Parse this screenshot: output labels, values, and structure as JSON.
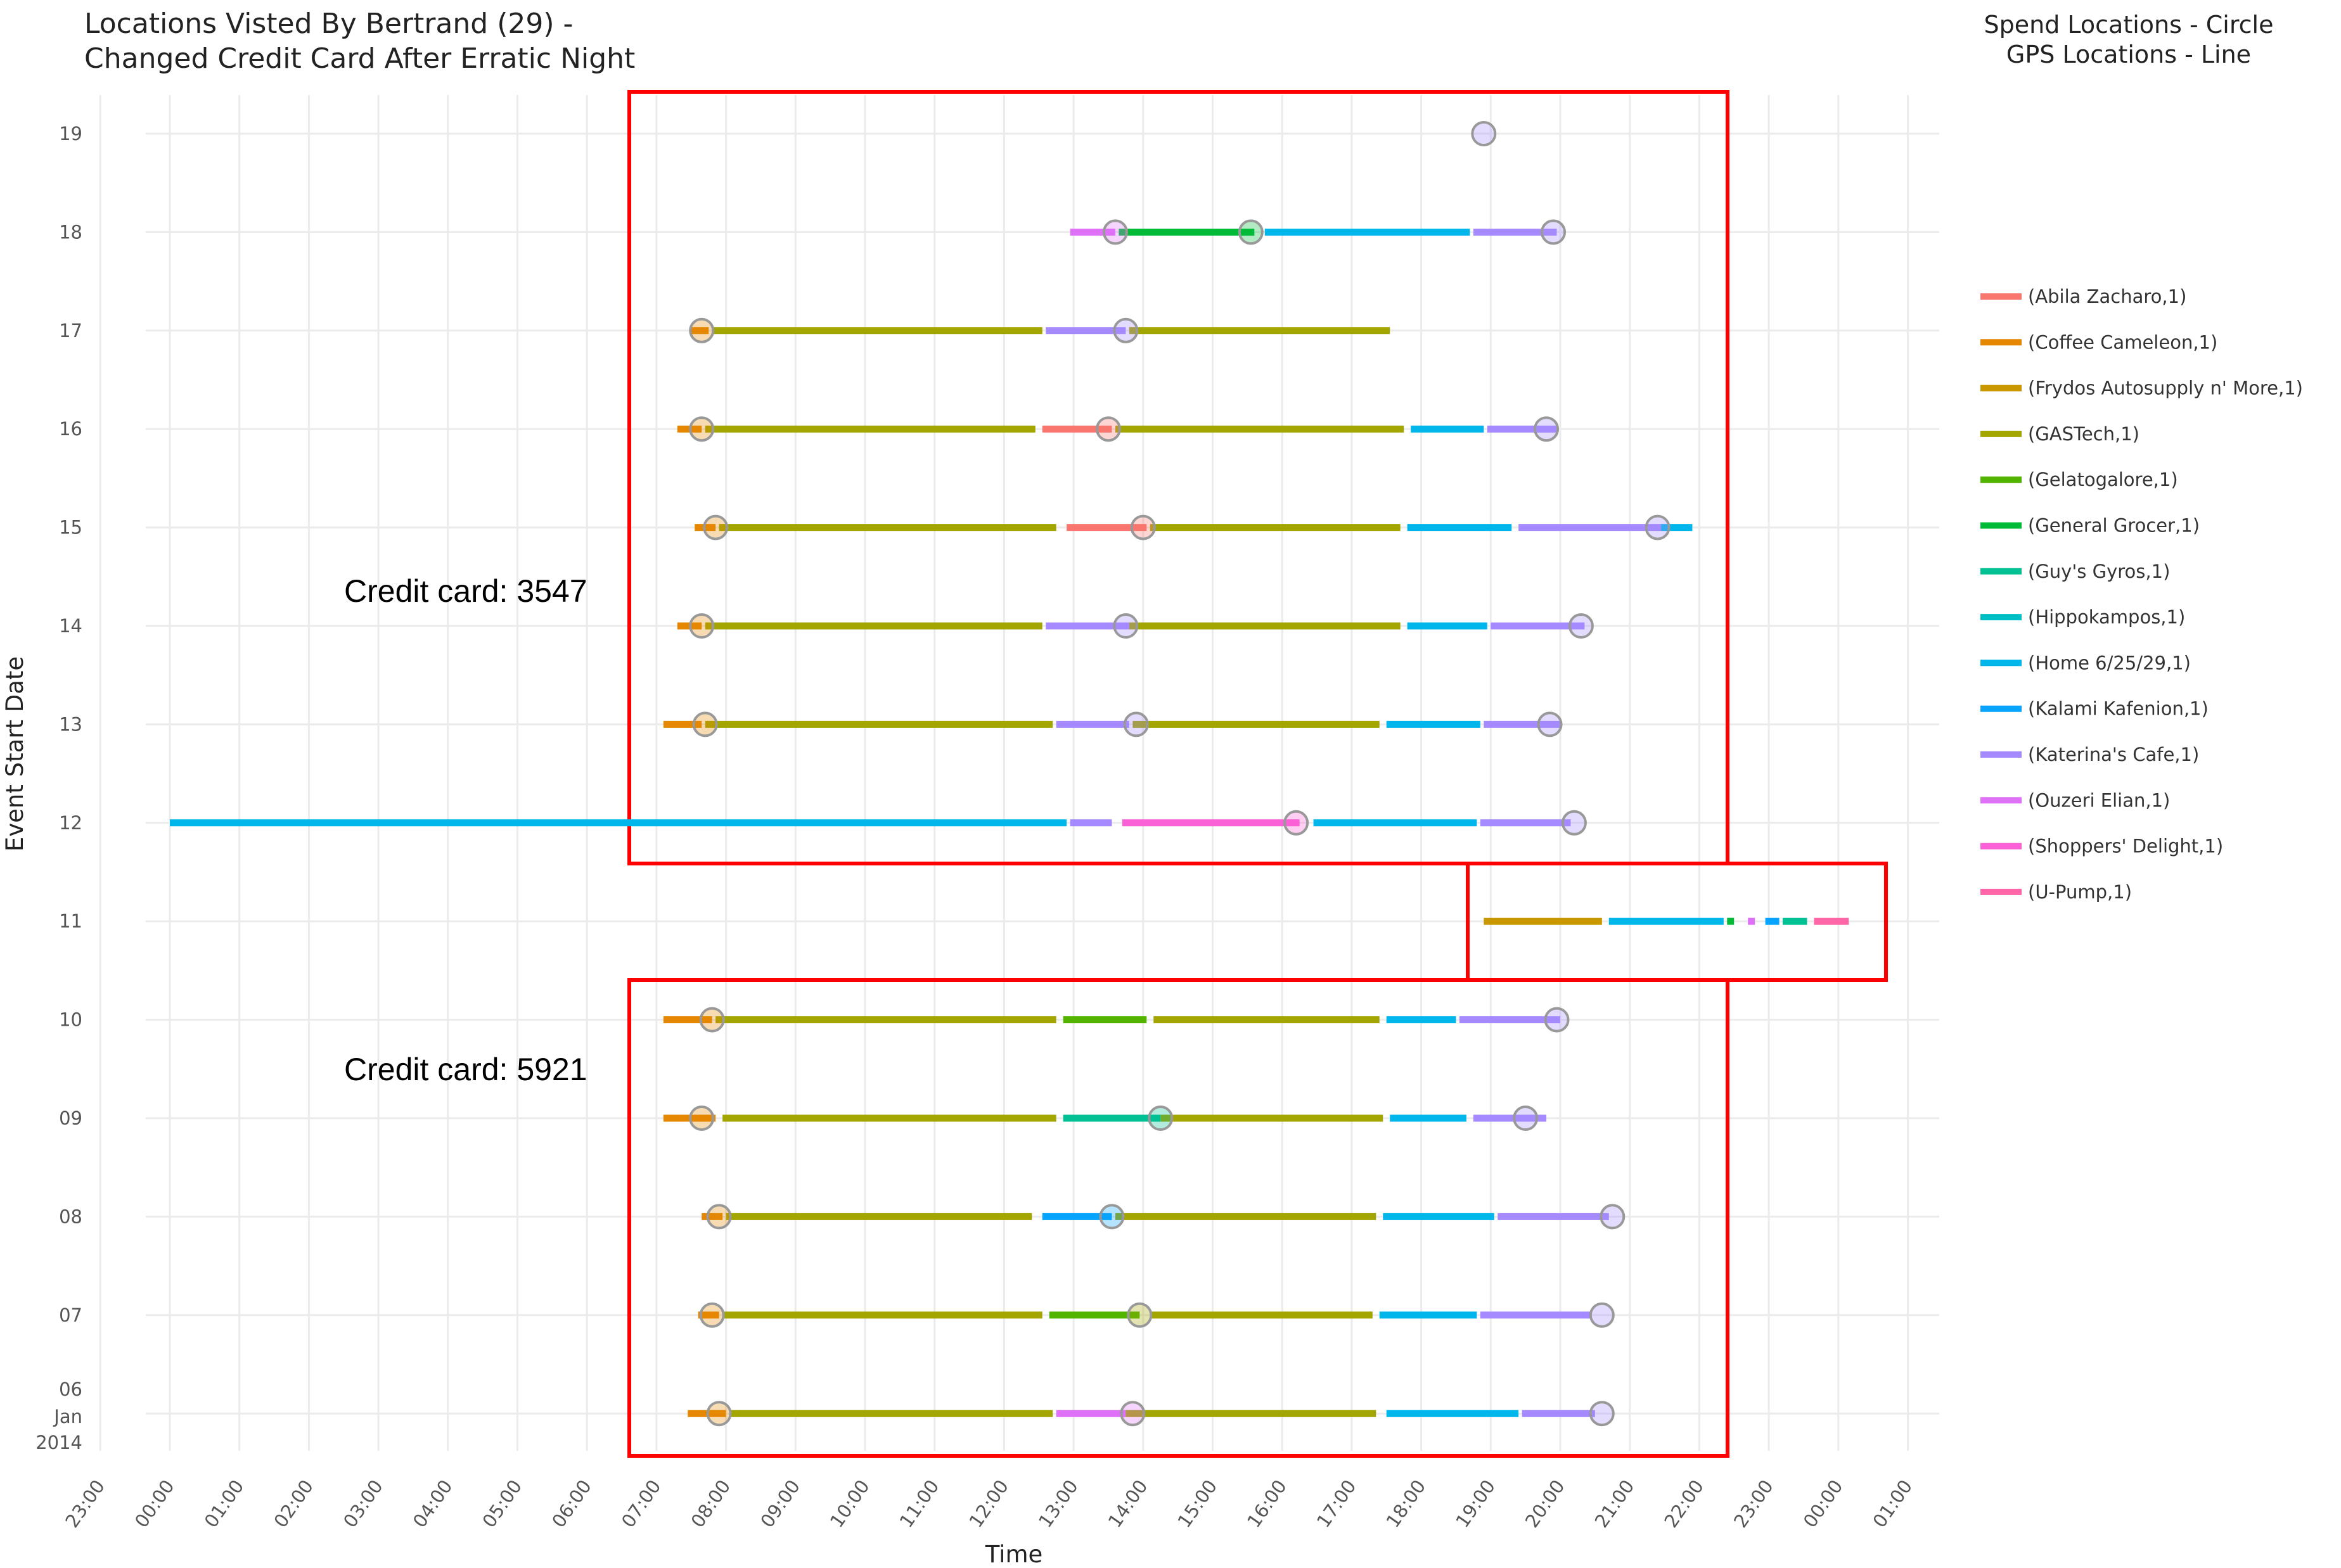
{
  "header": {
    "title_line1": "Locations Visted By Bertrand (29) -",
    "title_line2": "Changed Credit Card After Erratic Night",
    "legend_note_line1": "Spend Locations - Circle",
    "legend_note_line2": "GPS Locations - Line"
  },
  "annotations": [
    {
      "text": "Credit card: 3547",
      "box_days": [
        12,
        19
      ],
      "box_hours": [
        6.67,
        22.1
      ]
    },
    {
      "text": "Credit card: 5921",
      "box_days": [
        6,
        10
      ],
      "box_hours": [
        6.67,
        22.1
      ]
    },
    {
      "text": "",
      "box_days": [
        11,
        11
      ],
      "box_hours": [
        18.6,
        24.35
      ]
    }
  ],
  "chart_data": {
    "type": "timeline",
    "title": "Locations Visted By Bertrand (29) - Changed Credit Card After Erratic Night",
    "xlabel": "Time",
    "ylabel": "Event Start Date",
    "x_ticks": [
      "23:00",
      "00:00",
      "01:00",
      "02:00",
      "03:00",
      "04:00",
      "05:00",
      "06:00",
      "07:00",
      "08:00",
      "09:00",
      "10:00",
      "11:00",
      "12:00",
      "13:00",
      "14:00",
      "15:00",
      "16:00",
      "17:00",
      "18:00",
      "19:00",
      "20:00",
      "21:00",
      "22:00",
      "23:00",
      "00:00",
      "01:00"
    ],
    "x_range_hours": [
      -1,
      25
    ],
    "y_ticks": [
      "19",
      "18",
      "17",
      "16",
      "15",
      "14",
      "13",
      "12",
      "11",
      "10",
      "09",
      "08",
      "07",
      "06 Jan 2014"
    ],
    "y_range_days": [
      6,
      19
    ],
    "grid": true,
    "legend_position": "right",
    "legend": [
      {
        "name": "(Abila Zacharo,1)",
        "color": "#F8766D"
      },
      {
        "name": "(Coffee Cameleon,1)",
        "color": "#E58700"
      },
      {
        "name": "(Frydos Autosupply n' More,1)",
        "color": "#C99800"
      },
      {
        "name": "(GASTech,1)",
        "color": "#A3A500"
      },
      {
        "name": "(Gelatogalore,1)",
        "color": "#53B400"
      },
      {
        "name": "(General Grocer,1)",
        "color": "#00BA38"
      },
      {
        "name": "(Guy's Gyros,1)",
        "color": "#00C094"
      },
      {
        "name": "(Hippokampos,1)",
        "color": "#00BFC4"
      },
      {
        "name": "(Home 6/25/29,1)",
        "color": "#00B6EB"
      },
      {
        "name": "(Kalami Kafenion,1)",
        "color": "#06A4FF"
      },
      {
        "name": "(Katerina's Cafe,1)",
        "color": "#A58AFF"
      },
      {
        "name": "(Ouzeri Elian,1)",
        "color": "#DF70F8"
      },
      {
        "name": "(Shoppers' Delight,1)",
        "color": "#FB61D7"
      },
      {
        "name": "(U-Pump,1)",
        "color": "#FF66A8"
      }
    ],
    "gps_segments": [
      {
        "day": 18,
        "segments": [
          {
            "loc": "Ouzeri Elian",
            "start": 12.95,
            "end": 13.6
          },
          {
            "loc": "General Grocer",
            "start": 13.65,
            "end": 15.6
          },
          {
            "loc": "Home 6/25/29",
            "start": 15.75,
            "end": 18.7
          },
          {
            "loc": "Katerina's Cafe",
            "start": 18.75,
            "end": 19.95
          }
        ]
      },
      {
        "day": 17,
        "segments": [
          {
            "loc": "Coffee Cameleon",
            "start": 7.5,
            "end": 7.75
          },
          {
            "loc": "GASTech",
            "start": 7.8,
            "end": 12.55
          },
          {
            "loc": "Katerina's Cafe",
            "start": 12.6,
            "end": 13.75
          },
          {
            "loc": "GASTech",
            "start": 13.8,
            "end": 17.55
          }
        ]
      },
      {
        "day": 16,
        "segments": [
          {
            "loc": "Coffee Cameleon",
            "start": 7.3,
            "end": 7.65
          },
          {
            "loc": "GASTech",
            "start": 7.7,
            "end": 12.45
          },
          {
            "loc": "Abila Zacharo",
            "start": 12.55,
            "end": 13.55
          },
          {
            "loc": "GASTech",
            "start": 13.6,
            "end": 17.75
          },
          {
            "loc": "Home 6/25/29",
            "start": 17.85,
            "end": 18.9
          },
          {
            "loc": "Katerina's Cafe",
            "start": 18.95,
            "end": 19.95
          }
        ]
      },
      {
        "day": 15,
        "segments": [
          {
            "loc": "Coffee Cameleon",
            "start": 7.55,
            "end": 7.85
          },
          {
            "loc": "GASTech",
            "start": 7.9,
            "end": 12.75
          },
          {
            "loc": "Abila Zacharo",
            "start": 12.9,
            "end": 14.05
          },
          {
            "loc": "GASTech",
            "start": 14.1,
            "end": 17.7
          },
          {
            "loc": "Home 6/25/29",
            "start": 17.8,
            "end": 19.3
          },
          {
            "loc": "Katerina's Cafe",
            "start": 19.4,
            "end": 21.45
          },
          {
            "loc": "Home 6/25/29",
            "start": 21.45,
            "end": 21.9
          }
        ]
      },
      {
        "day": 14,
        "segments": [
          {
            "loc": "Coffee Cameleon",
            "start": 7.3,
            "end": 7.65
          },
          {
            "loc": "GASTech",
            "start": 7.7,
            "end": 12.55
          },
          {
            "loc": "Katerina's Cafe",
            "start": 12.6,
            "end": 13.8
          },
          {
            "loc": "GASTech",
            "start": 13.8,
            "end": 17.7
          },
          {
            "loc": "Home 6/25/29",
            "start": 17.8,
            "end": 18.95
          },
          {
            "loc": "Katerina's Cafe",
            "start": 19.0,
            "end": 20.35
          }
        ]
      },
      {
        "day": 13,
        "segments": [
          {
            "loc": "Coffee Cameleon",
            "start": 7.1,
            "end": 7.65
          },
          {
            "loc": "GASTech",
            "start": 7.7,
            "end": 12.7
          },
          {
            "loc": "Katerina's Cafe",
            "start": 12.75,
            "end": 13.8
          },
          {
            "loc": "GASTech",
            "start": 13.85,
            "end": 17.4
          },
          {
            "loc": "Home 6/25/29",
            "start": 17.5,
            "end": 18.85
          },
          {
            "loc": "Katerina's Cafe",
            "start": 18.9,
            "end": 20.0
          }
        ]
      },
      {
        "day": 12,
        "segments": [
          {
            "loc": "Home 6/25/29",
            "start": 0.0,
            "end": 12.9
          },
          {
            "loc": "Katerina's Cafe",
            "start": 12.95,
            "end": 13.55
          },
          {
            "loc": "Shoppers' Delight",
            "start": 13.7,
            "end": 16.25
          },
          {
            "loc": "Home 6/25/29",
            "start": 16.45,
            "end": 18.8
          },
          {
            "loc": "Katerina's Cafe",
            "start": 18.85,
            "end": 20.15
          }
        ]
      },
      {
        "day": 11,
        "segments": [
          {
            "loc": "Frydos Autosupply n' More",
            "start": 18.9,
            "end": 20.6
          },
          {
            "loc": "Home 6/25/29",
            "start": 20.7,
            "end": 22.35
          },
          {
            "loc": "General Grocer",
            "start": 22.4,
            "end": 22.5
          },
          {
            "loc": "Ouzeri Elian",
            "start": 22.7,
            "end": 22.8
          },
          {
            "loc": "Kalami Kafenion",
            "start": 22.95,
            "end": 23.15
          },
          {
            "loc": "Guy's Gyros",
            "start": 23.2,
            "end": 23.55
          },
          {
            "loc": "U-Pump",
            "start": 23.65,
            "end": 24.15
          }
        ]
      },
      {
        "day": 10,
        "segments": [
          {
            "loc": "Coffee Cameleon",
            "start": 7.1,
            "end": 7.8
          },
          {
            "loc": "GASTech",
            "start": 7.85,
            "end": 12.75
          },
          {
            "loc": "Gelatogalore",
            "start": 12.85,
            "end": 14.05
          },
          {
            "loc": "GASTech",
            "start": 14.15,
            "end": 17.4
          },
          {
            "loc": "Home 6/25/29",
            "start": 17.5,
            "end": 18.5
          },
          {
            "loc": "Katerina's Cafe",
            "start": 18.55,
            "end": 20.0
          }
        ]
      },
      {
        "day": 9,
        "segments": [
          {
            "loc": "Coffee Cameleon",
            "start": 7.1,
            "end": 7.85
          },
          {
            "loc": "GASTech",
            "start": 7.95,
            "end": 12.75
          },
          {
            "loc": "Guy's Gyros",
            "start": 12.85,
            "end": 14.25
          },
          {
            "loc": "GASTech",
            "start": 14.25,
            "end": 17.45
          },
          {
            "loc": "Home 6/25/29",
            "start": 17.55,
            "end": 18.65
          },
          {
            "loc": "Katerina's Cafe",
            "start": 18.75,
            "end": 19.8
          }
        ]
      },
      {
        "day": 8,
        "segments": [
          {
            "loc": "Coffee Cameleon",
            "start": 7.65,
            "end": 7.95
          },
          {
            "loc": "GASTech",
            "start": 8.0,
            "end": 12.4
          },
          {
            "loc": "Kalami Kafenion",
            "start": 12.55,
            "end": 13.55
          },
          {
            "loc": "GASTech",
            "start": 13.6,
            "end": 17.35
          },
          {
            "loc": "Home 6/25/29",
            "start": 17.45,
            "end": 19.05
          },
          {
            "loc": "Katerina's Cafe",
            "start": 19.1,
            "end": 20.7
          }
        ]
      },
      {
        "day": 7,
        "segments": [
          {
            "loc": "Coffee Cameleon",
            "start": 7.6,
            "end": 7.9
          },
          {
            "loc": "GASTech",
            "start": 7.95,
            "end": 12.55
          },
          {
            "loc": "Gelatogalore",
            "start": 12.65,
            "end": 13.95
          },
          {
            "loc": "GASTech",
            "start": 14.1,
            "end": 17.3
          },
          {
            "loc": "Home 6/25/29",
            "start": 17.4,
            "end": 18.8
          },
          {
            "loc": "Katerina's Cafe",
            "start": 18.85,
            "end": 20.45
          }
        ]
      },
      {
        "day": 6,
        "segments": [
          {
            "loc": "Coffee Cameleon",
            "start": 7.45,
            "end": 8.0
          },
          {
            "loc": "GASTech",
            "start": 8.05,
            "end": 12.7
          },
          {
            "loc": "Ouzeri Elian",
            "start": 12.75,
            "end": 13.75
          },
          {
            "loc": "GASTech",
            "start": 13.75,
            "end": 17.35
          },
          {
            "loc": "Home 6/25/29",
            "start": 17.5,
            "end": 19.4
          },
          {
            "loc": "Katerina's Cafe",
            "start": 19.45,
            "end": 20.5
          }
        ]
      }
    ],
    "spend_points": [
      {
        "day": 19,
        "hour": 18.9,
        "loc": "Katerina's Cafe"
      },
      {
        "day": 18,
        "hour": 13.6,
        "loc": "Ouzeri Elian"
      },
      {
        "day": 18,
        "hour": 15.55,
        "loc": "General Grocer"
      },
      {
        "day": 18,
        "hour": 19.9,
        "loc": "Katerina's Cafe"
      },
      {
        "day": 17,
        "hour": 7.65,
        "loc": "Coffee Cameleon"
      },
      {
        "day": 17,
        "hour": 13.75,
        "loc": "Katerina's Cafe"
      },
      {
        "day": 16,
        "hour": 7.65,
        "loc": "Coffee Cameleon"
      },
      {
        "day": 16,
        "hour": 13.5,
        "loc": "Abila Zacharo"
      },
      {
        "day": 16,
        "hour": 19.8,
        "loc": "Katerina's Cafe"
      },
      {
        "day": 15,
        "hour": 7.85,
        "loc": "Coffee Cameleon"
      },
      {
        "day": 15,
        "hour": 14.0,
        "loc": "Abila Zacharo"
      },
      {
        "day": 15,
        "hour": 21.4,
        "loc": "Katerina's Cafe"
      },
      {
        "day": 14,
        "hour": 7.65,
        "loc": "Coffee Cameleon"
      },
      {
        "day": 14,
        "hour": 13.75,
        "loc": "Katerina's Cafe"
      },
      {
        "day": 14,
        "hour": 20.3,
        "loc": "Katerina's Cafe"
      },
      {
        "day": 13,
        "hour": 7.7,
        "loc": "Coffee Cameleon"
      },
      {
        "day": 13,
        "hour": 13.9,
        "loc": "Katerina's Cafe"
      },
      {
        "day": 13,
        "hour": 19.85,
        "loc": "Katerina's Cafe"
      },
      {
        "day": 12,
        "hour": 16.2,
        "loc": "Shoppers' Delight"
      },
      {
        "day": 12,
        "hour": 20.2,
        "loc": "Katerina's Cafe"
      },
      {
        "day": 10,
        "hour": 7.8,
        "loc": "Coffee Cameleon"
      },
      {
        "day": 10,
        "hour": 19.95,
        "loc": "Katerina's Cafe"
      },
      {
        "day": 9,
        "hour": 7.65,
        "loc": "Coffee Cameleon"
      },
      {
        "day": 9,
        "hour": 14.25,
        "loc": "Guy's Gyros"
      },
      {
        "day": 9,
        "hour": 19.5,
        "loc": "Katerina's Cafe"
      },
      {
        "day": 8,
        "hour": 7.9,
        "loc": "Coffee Cameleon"
      },
      {
        "day": 8,
        "hour": 13.55,
        "loc": "Kalami Kafenion"
      },
      {
        "day": 8,
        "hour": 20.75,
        "loc": "Katerina's Cafe"
      },
      {
        "day": 7,
        "hour": 7.8,
        "loc": "Coffee Cameleon"
      },
      {
        "day": 7,
        "hour": 13.95,
        "loc": "GASTech"
      },
      {
        "day": 7,
        "hour": 20.6,
        "loc": "Katerina's Cafe"
      },
      {
        "day": 6,
        "hour": 7.9,
        "loc": "Coffee Cameleon"
      },
      {
        "day": 6,
        "hour": 13.85,
        "loc": "Ouzeri Elian"
      },
      {
        "day": 6,
        "hour": 20.6,
        "loc": "Katerina's Cafe"
      }
    ]
  }
}
